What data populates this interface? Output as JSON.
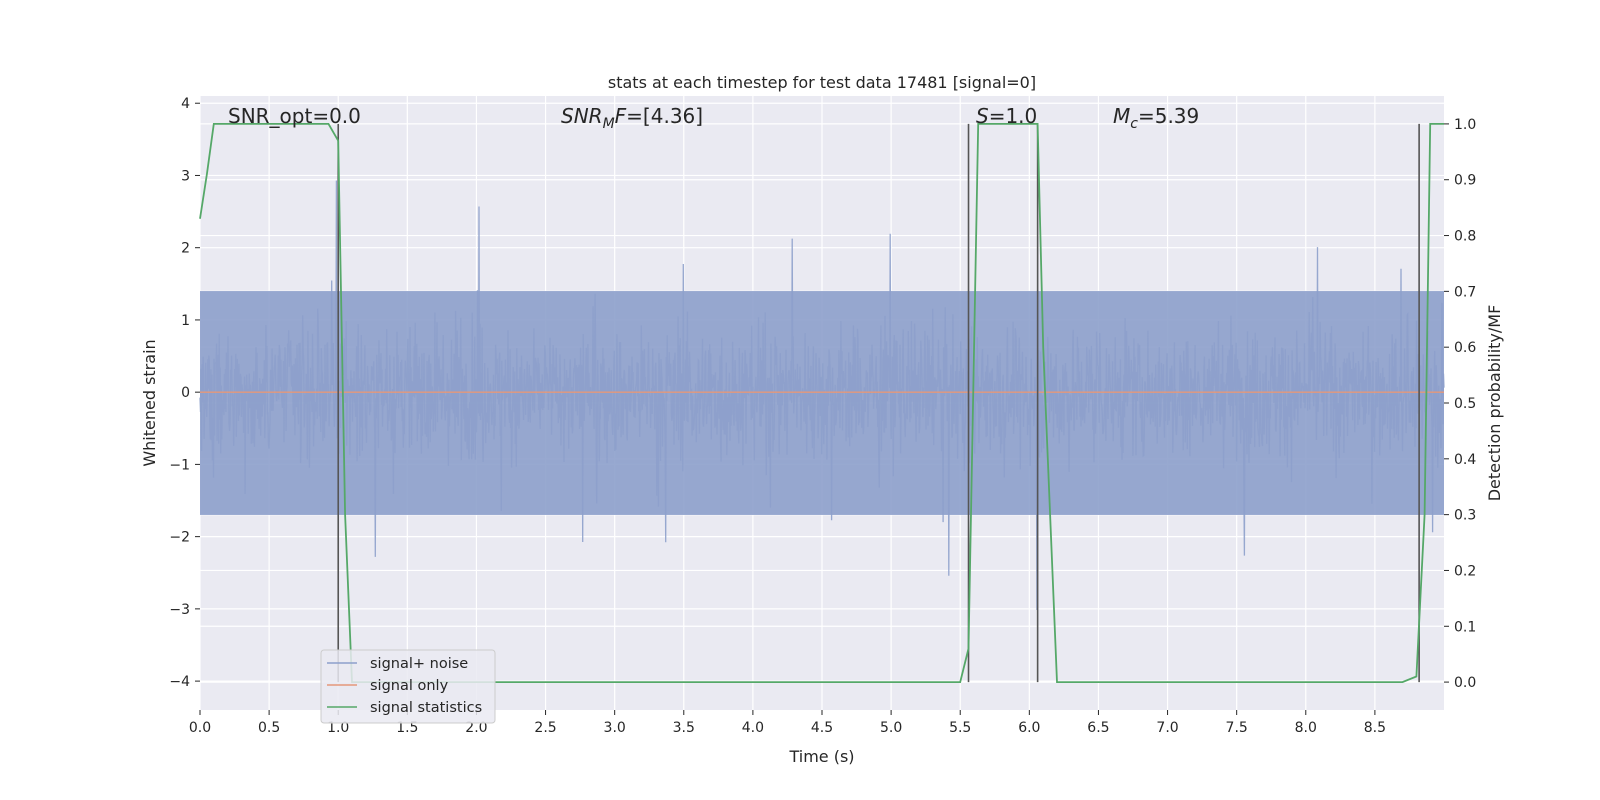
{
  "chart_data": {
    "type": "line",
    "title": "stats at each timestep for test data 17481 [signal=0]",
    "xlabel": "Time (s)",
    "ylabel_left": "Whitened strain",
    "ylabel_right": "Detection probability/MF",
    "xlim": [
      0,
      9.0
    ],
    "ylim_left": [
      -4.4,
      4.1
    ],
    "ylim_right": [
      -0.05,
      1.05
    ],
    "grid": true,
    "x_ticks": [
      "0.0",
      "0.5",
      "1.0",
      "1.5",
      "2.0",
      "2.5",
      "3.0",
      "3.5",
      "4.0",
      "4.5",
      "5.0",
      "5.5",
      "6.0",
      "6.5",
      "7.0",
      "7.5",
      "8.0",
      "8.5"
    ],
    "x_tick_values": [
      0,
      0.5,
      1.0,
      1.5,
      2.0,
      2.5,
      3.0,
      3.5,
      4.0,
      4.5,
      5.0,
      5.5,
      6.0,
      6.5,
      7.0,
      7.5,
      8.0,
      8.5
    ],
    "y_left_ticks": [
      "4",
      "3",
      "2",
      "1",
      "0",
      "−1",
      "−2",
      "−3",
      "−4"
    ],
    "y_left_tick_values": [
      4,
      3,
      2,
      1,
      0,
      -1,
      -2,
      -3,
      -4
    ],
    "y_right_ticks": [
      "1.0",
      "0.9",
      "0.8",
      "0.7",
      "0.6",
      "0.5",
      "0.4",
      "0.3",
      "0.2",
      "0.1",
      "0.0"
    ],
    "y_right_tick_values": [
      1.0,
      0.9,
      0.8,
      0.7,
      0.6,
      0.5,
      0.4,
      0.3,
      0.2,
      0.1,
      0.0
    ],
    "annotations": {
      "snr_opt": "SNR_opt=0.0",
      "snr_mf_prefix": "SNR",
      "snr_mf_sub": "M",
      "snr_mf_suffix": "F=[4.36]",
      "s_italic": "S",
      "s_value": "=1.0",
      "mc_italic": "M",
      "mc_sub": "c",
      "mc_value": "=5.39"
    },
    "vertical_markers": [
      1.0,
      5.56,
      6.06,
      8.82
    ],
    "series": [
      {
        "name": "signal+ noise",
        "axis": "left",
        "color": "#8da0cb",
        "description_kind": "noise",
        "envelope_upper": 1.4,
        "envelope_lower": -1.7,
        "max_peak": 3.7,
        "min_peak": -4.0
      },
      {
        "name": "signal only",
        "axis": "left",
        "color": "#e5987a",
        "x": [
          0,
          9.0
        ],
        "y": [
          0,
          0
        ]
      },
      {
        "name": "signal statistics",
        "axis": "right",
        "color": "#55a868",
        "x": [
          0,
          0.05,
          0.1,
          0.2,
          0.3,
          0.5,
          0.7,
          0.85,
          0.93,
          1.0,
          1.05,
          1.1,
          1.15,
          1.25,
          2.0,
          3.0,
          4.0,
          5.0,
          5.4,
          5.5,
          5.56,
          5.63,
          5.7,
          5.8,
          6.0,
          6.06,
          6.1,
          6.2,
          6.5,
          7.5,
          8.2,
          8.3,
          8.7,
          8.8,
          8.86,
          8.9,
          8.95,
          9.0
        ],
        "y": [
          0.83,
          0.91,
          1.0,
          1.0,
          1.0,
          1.0,
          1.0,
          1.0,
          1.0,
          0.97,
          0.3,
          0.0,
          0.0,
          0.0,
          0.0,
          0.0,
          0.0,
          0.0,
          0.0,
          0.0,
          0.06,
          1.0,
          1.0,
          1.0,
          1.0,
          1.0,
          0.6,
          0.0,
          0.0,
          0.0,
          0.0,
          0.0,
          0.0,
          0.01,
          0.3,
          1.0,
          1.0,
          1.0
        ]
      }
    ],
    "legend": {
      "placement": "lower-left",
      "entries": [
        "signal+ noise",
        "signal only",
        "signal statistics"
      ]
    }
  },
  "colors": {
    "plot_background": "#eaeaf2",
    "grid": "#ffffff",
    "marker_line": "#555555",
    "text": "#262626"
  }
}
